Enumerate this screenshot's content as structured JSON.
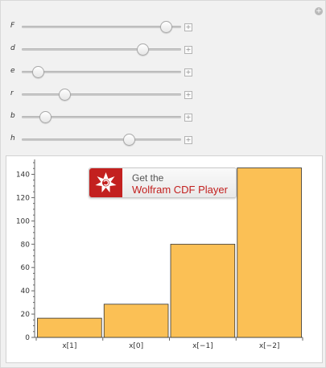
{
  "controls": {
    "sliders": [
      {
        "label": "F",
        "level": 0.94
      },
      {
        "label": "d",
        "level": 0.78
      },
      {
        "label": "e",
        "level": 0.07
      },
      {
        "label": "r",
        "level": 0.25
      },
      {
        "label": "b",
        "level": 0.12
      },
      {
        "label": "h",
        "level": 0.69
      }
    ]
  },
  "badge": {
    "get": "Get the",
    "name": "Wolfram CDF Player"
  },
  "colors": {
    "bar_fill": "#fbc055",
    "bar_stroke": "#333333",
    "badge_red": "#c3201f"
  },
  "chart_data": {
    "type": "bar",
    "categories": [
      "x[1]",
      "x[0]",
      "x[−1]",
      "x[−2]"
    ],
    "values": [
      16.5,
      28.5,
      80,
      145.5
    ],
    "ylim": [
      0,
      150
    ],
    "yticks": [
      0,
      20,
      40,
      60,
      80,
      100,
      120,
      140
    ],
    "grid": false
  }
}
